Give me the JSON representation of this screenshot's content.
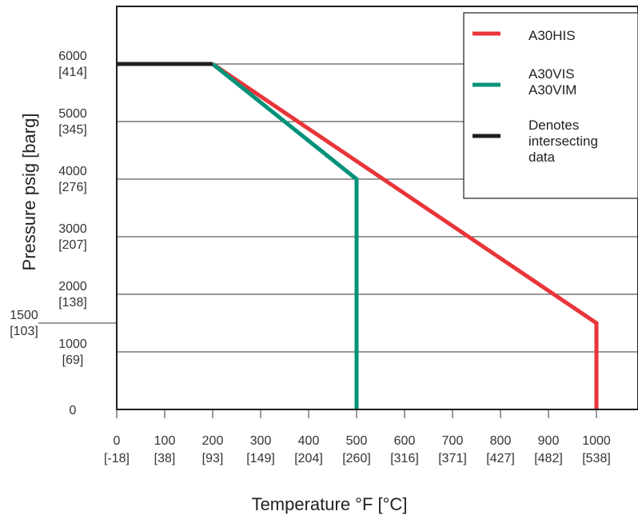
{
  "chart_data": {
    "type": "line",
    "xlabel": "Temperature °F [°C]",
    "ylabel": "Pressure psig [barg]",
    "xlim": [
      0,
      1080
    ],
    "ylim": [
      0,
      7000
    ],
    "grid": "horizontal",
    "x_ticks": [
      {
        "value": 0,
        "f": "0",
        "c": "[-18]"
      },
      {
        "value": 100,
        "f": "100",
        "c": "[38]"
      },
      {
        "value": 200,
        "f": "200",
        "c": "[93]"
      },
      {
        "value": 300,
        "f": "300",
        "c": "[149]"
      },
      {
        "value": 400,
        "f": "400",
        "c": "[204]"
      },
      {
        "value": 500,
        "f": "500",
        "c": "[260]"
      },
      {
        "value": 600,
        "f": "600",
        "c": "[316]"
      },
      {
        "value": 700,
        "f": "700",
        "c": "[371]"
      },
      {
        "value": 800,
        "f": "800",
        "c": "[427]"
      },
      {
        "value": 900,
        "f": "900",
        "c": "[482]"
      },
      {
        "value": 1000,
        "f": "1000",
        "c": "[538]"
      }
    ],
    "y_ticks": [
      {
        "value": 0,
        "psig": "0",
        "barg": ""
      },
      {
        "value": 1000,
        "psig": "1000",
        "barg": "[69]"
      },
      {
        "value": 1500,
        "psig": "1500",
        "barg": "[103]",
        "outside": true
      },
      {
        "value": 2000,
        "psig": "2000",
        "barg": "[138]"
      },
      {
        "value": 3000,
        "psig": "3000",
        "barg": "[207]"
      },
      {
        "value": 4000,
        "psig": "4000",
        "barg": "[276]"
      },
      {
        "value": 5000,
        "psig": "5000",
        "barg": "[345]"
      },
      {
        "value": 6000,
        "psig": "6000",
        "barg": "[414]"
      }
    ],
    "series": [
      {
        "name": "A30HIS",
        "color": "#e8353a",
        "points": [
          [
            200,
            6000
          ],
          [
            1000,
            1500
          ],
          [
            1000,
            0
          ]
        ]
      },
      {
        "name": "A30VIS\nA30VIM",
        "color": "#00937a",
        "points": [
          [
            200,
            6000
          ],
          [
            500,
            4000
          ],
          [
            500,
            0
          ]
        ]
      },
      {
        "name": "Denotes\nintersecting\ndata",
        "color": "#1e1e1e",
        "points": [
          [
            0,
            6000
          ],
          [
            200,
            6000
          ]
        ]
      }
    ],
    "legend_position": "top-right"
  }
}
